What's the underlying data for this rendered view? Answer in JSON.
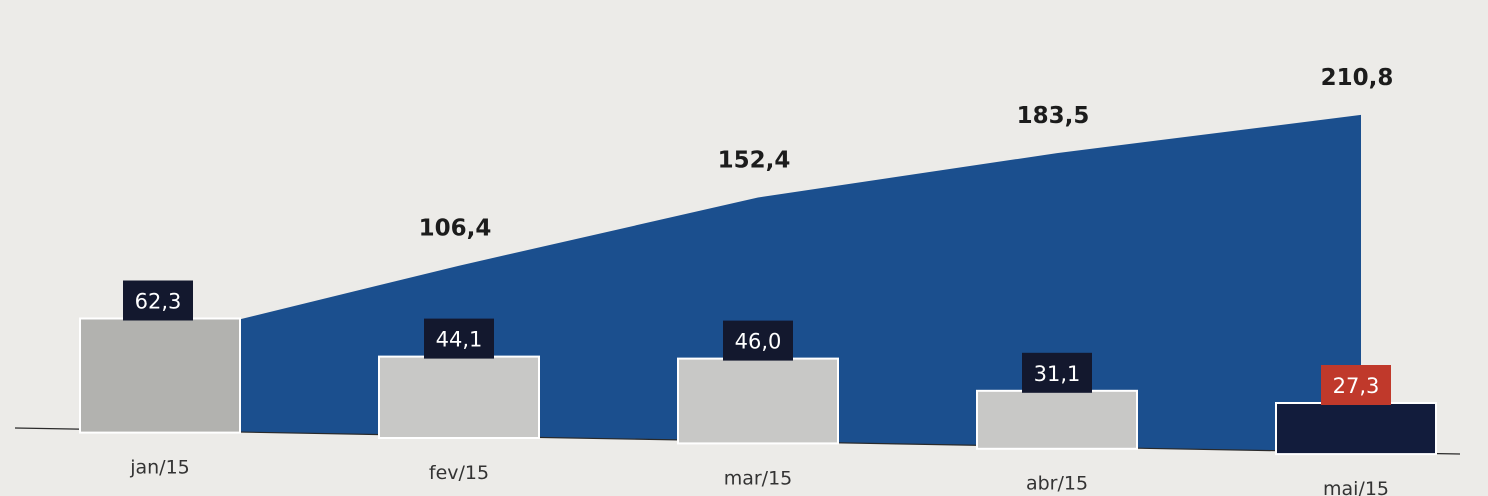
{
  "chart_data": {
    "type": "bar",
    "categories": [
      "jan/15",
      "fev/15",
      "mar/15",
      "abr/15",
      "mai/15"
    ],
    "series": [
      {
        "values": [
          62.3,
          44.1,
          46.0,
          31.1,
          27.3
        ]
      },
      {
        "type": "area",
        "values": [
          62.3,
          106.4,
          152.4,
          183.5,
          210.8
        ]
      }
    ],
    "value_labels": [
      "62,3",
      "44,1",
      "46,0",
      "31,1",
      "27,3"
    ],
    "cumulative_labels": [
      "106,4",
      "152,4",
      "183,5",
      "210,8"
    ],
    "highlight_index": 4,
    "ylim": [
      0,
      215
    ],
    "grid": false,
    "colors": {
      "area": "#1b4f8e",
      "bar": "#c8c8c6",
      "bar_first": "#b2b2af",
      "bar_highlight": "#121c3c",
      "label_box": "#13182e",
      "label_box_highlight": "#c0392b"
    }
  }
}
